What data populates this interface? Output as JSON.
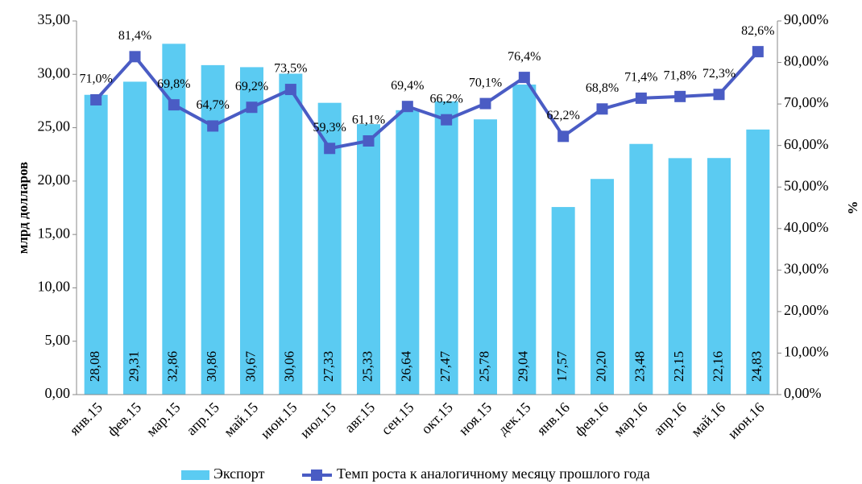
{
  "chart_data": {
    "type": "bar",
    "y_label": "млрд долларов",
    "y2_label": "%",
    "categories": [
      "янв.15",
      "фев.15",
      "мар.15",
      "апр.15",
      "май.15",
      "июн.15",
      "июл.15",
      "авг.15",
      "сен.15",
      "окт.15",
      "ноя.15",
      "дек.15",
      "янв.16",
      "фев.16",
      "мар.16",
      "апр.16",
      "май.16",
      "июн.16"
    ],
    "series": [
      {
        "name": "Экспорт",
        "type": "bar",
        "color": "#5bcbf2",
        "values": [
          28.08,
          29.31,
          32.86,
          30.86,
          30.67,
          30.06,
          27.33,
          25.33,
          26.64,
          27.47,
          25.78,
          29.04,
          17.57,
          20.2,
          23.48,
          22.15,
          22.16,
          24.83
        ],
        "value_labels": [
          "28,08",
          "29,31",
          "32,86",
          "30,86",
          "30,67",
          "30,06",
          "27,33",
          "25,33",
          "26,64",
          "27,47",
          "25,78",
          "29,04",
          "17,57",
          "20,20",
          "23,48",
          "22,15",
          "22,16",
          "24,83"
        ]
      },
      {
        "name": "Темп роста к аналогичному месяцу прошлого года",
        "type": "line",
        "axis": "y2",
        "color": "#4a5cc4",
        "values": [
          71.0,
          81.4,
          69.8,
          64.7,
          69.2,
          73.5,
          59.3,
          61.1,
          69.4,
          66.2,
          70.1,
          76.4,
          62.2,
          68.8,
          71.4,
          71.8,
          72.3,
          82.6
        ],
        "value_labels": [
          "71,0%",
          "81,4%",
          "69,8%",
          "64,7%",
          "69,2%",
          "73,5%",
          "59,3%",
          "61,1%",
          "69,4%",
          "66,2%",
          "70,1%",
          "76,4%",
          "62,2%",
          "68,8%",
          "71,4%",
          "71,8%",
          "72,3%",
          "82,6%"
        ]
      }
    ],
    "ylim": [
      0,
      35
    ],
    "yticks": [
      {
        "value": 0,
        "label": "0,00"
      },
      {
        "value": 5,
        "label": "5,00"
      },
      {
        "value": 10,
        "label": "10,00"
      },
      {
        "value": 15,
        "label": "15,00"
      },
      {
        "value": 20,
        "label": "20,00"
      },
      {
        "value": 25,
        "label": "25,00"
      },
      {
        "value": 30,
        "label": "30,00"
      },
      {
        "value": 35,
        "label": "35,00"
      }
    ],
    "y2lim": [
      0,
      90
    ],
    "y2ticks": [
      {
        "value": 0,
        "label": "0,00%"
      },
      {
        "value": 10,
        "label": "10,00%"
      },
      {
        "value": 20,
        "label": "20,00%"
      },
      {
        "value": 30,
        "label": "30,00%"
      },
      {
        "value": 40,
        "label": "40,00%"
      },
      {
        "value": 50,
        "label": "50,00%"
      },
      {
        "value": 60,
        "label": "60,00%"
      },
      {
        "value": 70,
        "label": "70,00%"
      },
      {
        "value": 80,
        "label": "80,00%"
      },
      {
        "value": 90,
        "label": "90,00%"
      }
    ],
    "grid": false,
    "legend": "bottom"
  }
}
